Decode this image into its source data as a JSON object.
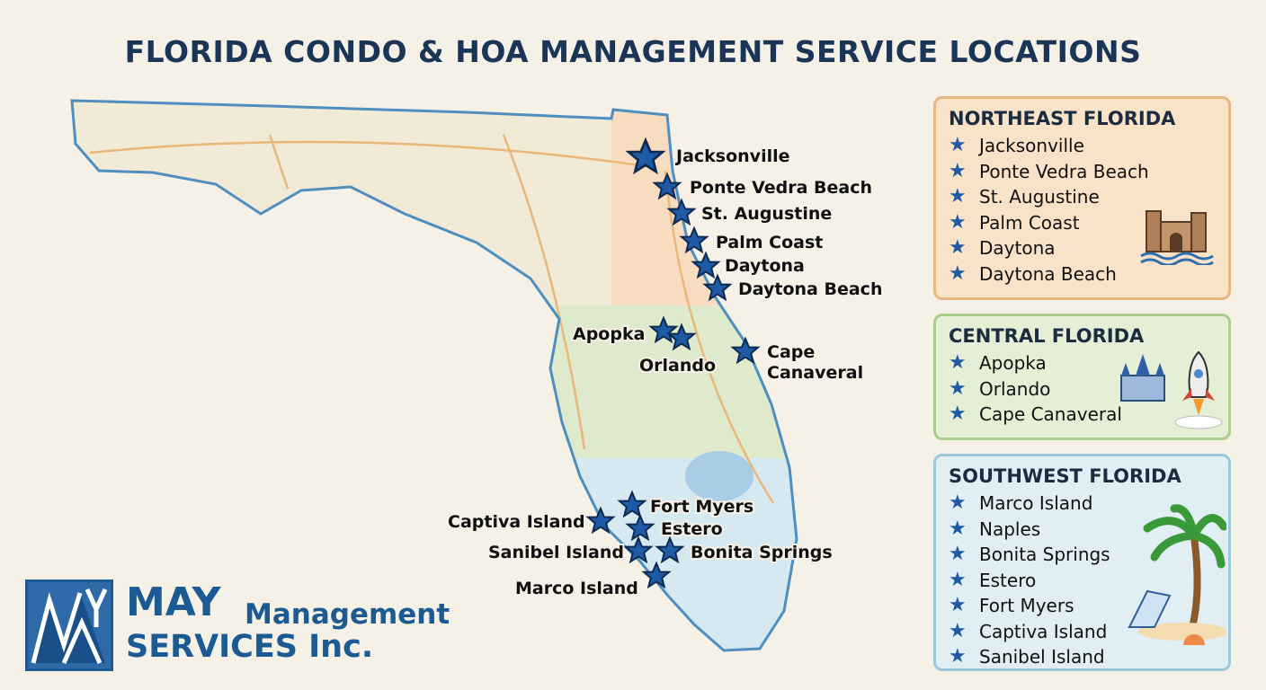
{
  "title": "FLORIDA CONDO & HOA MANAGEMENT SERVICE LOCATIONS",
  "colors": {
    "northeast": "#f9e3c8",
    "central": "#e5efd6",
    "southwest": "#e1eef4",
    "star": "#1f5aa6",
    "title": "#1b3557"
  },
  "map_labels": {
    "jacksonville": "Jacksonville",
    "ponte_vedra": "Ponte Vedra Beach",
    "st_augustine": "St. Augustine",
    "palm_coast": "Palm Coast",
    "daytona": "Daytona",
    "daytona_beach": "Daytona Beach",
    "apopka": "Apopka",
    "orlando": "Orlando",
    "cape1": "Cape",
    "cape2": "Canaveral",
    "fort_myers": "Fort Myers",
    "captiva": "Captiva Island",
    "estero": "Estero",
    "sanibel": "Sanibel Island",
    "bonita": "Bonita Springs",
    "marco": "Marco Island"
  },
  "regions": [
    {
      "name": "NORTHEAST FLORIDA",
      "icon": "castle-icon",
      "items": [
        "Jacksonville",
        "Ponte Vedra Beach",
        "St. Augustine",
        "Palm Coast",
        "Daytona",
        "Daytona Beach"
      ]
    },
    {
      "name": "CENTRAL FLORIDA",
      "icon": "rocket-icon",
      "items": [
        "Apopka",
        "Orlando",
        "Cape Canaveral"
      ]
    },
    {
      "name": "SOUTHWEST FLORIDA",
      "icon": "palm-tree-icon",
      "items": [
        "Marco Island",
        "Naples",
        "Bonita Springs",
        "Estero",
        "Fort Myers",
        "Captiva Island",
        "Sanibel Island"
      ]
    }
  ],
  "logo": {
    "mark": "MAY",
    "line1": "MAY",
    "line2": "Management",
    "line3": "SERVICES Inc."
  }
}
